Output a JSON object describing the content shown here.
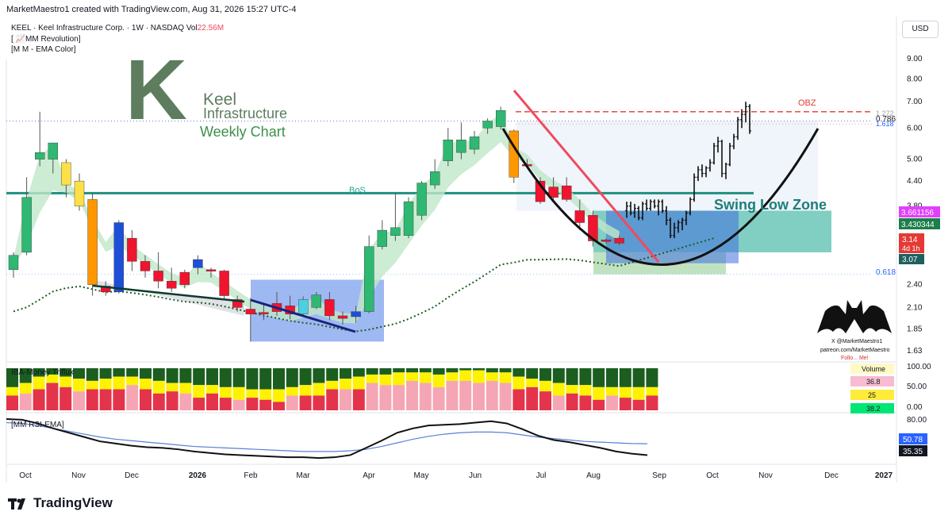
{
  "header": {
    "credit": "MarketMaestro1 created with TradingView.com, Aug 31, 2026 15:27 UTC-4",
    "symbol_line": "KEEL · Keel Infrastructure Corp. · 1W · NASDAQ",
    "vol_label": "Vol",
    "vol_value": "22.56M",
    "indicator_1": "[ 📈MM Revolution]",
    "indicator_2": "[M M - EMA Color]",
    "currency_button": "USD"
  },
  "logo": {
    "letter": "K",
    "line1": "Keel",
    "line2": "Infrastructure",
    "subtitle": "Weekly Chart"
  },
  "annotations": {
    "bos": "BoS",
    "obz": "OBZ",
    "swing_low_zone": "Swing Low Zone",
    "fib_1272": "1.272",
    "fib_0786": "0.786",
    "fib_1618": "1.618",
    "fib_0618": "0.618"
  },
  "badges": {
    "price_1": "3.661156",
    "price_2": "3.430344",
    "price_3": "3.14",
    "countdown": "4d 1h",
    "price_4": "3.07"
  },
  "watermark": {
    "line1": "X @MarketMaestro1",
    "line2": "patreon.com/MarketMaestro",
    "line3": "Follo... Me!"
  },
  "chart_data": {
    "type": "candlestick",
    "price_axis_ticks": [
      "9.00",
      "8.00",
      "7.00",
      "6.00",
      "5.00",
      "4.40",
      "3.80",
      "2.40",
      "2.10",
      "1.85",
      "1.63"
    ],
    "time_axis_ticks": [
      "Oct",
      "Nov",
      "Dec",
      "2026",
      "Feb",
      "Mar",
      "Apr",
      "May",
      "Jun",
      "Jul",
      "Aug",
      "Sep",
      "Oct",
      "Nov",
      "Dec",
      "2027"
    ],
    "weekly_candles": [
      {
        "o": 2.62,
        "h": 2.9,
        "l": 2.5,
        "c": 2.85,
        "col": "green"
      },
      {
        "o": 2.9,
        "h": 4.5,
        "l": 2.85,
        "c": 4.0,
        "col": "green"
      },
      {
        "o": 5.0,
        "h": 6.6,
        "l": 4.8,
        "c": 5.2,
        "col": "green"
      },
      {
        "o": 5.0,
        "h": 5.5,
        "l": 4.6,
        "c": 5.5,
        "col": "green"
      },
      {
        "o": 4.9,
        "h": 5.0,
        "l": 4.0,
        "c": 4.3,
        "col": "yellow"
      },
      {
        "o": 4.4,
        "h": 4.6,
        "l": 3.7,
        "c": 3.8,
        "col": "yellow"
      },
      {
        "o": 3.95,
        "h": 4.1,
        "l": 2.25,
        "c": 2.4,
        "col": "orange"
      },
      {
        "o": 2.38,
        "h": 2.45,
        "l": 2.25,
        "c": 2.3,
        "col": "red"
      },
      {
        "o": 2.3,
        "h": 3.5,
        "l": 2.28,
        "c": 3.45,
        "col": "blue"
      },
      {
        "o": 3.15,
        "h": 3.3,
        "l": 2.6,
        "c": 2.75,
        "col": "red"
      },
      {
        "o": 2.75,
        "h": 2.85,
        "l": 2.5,
        "c": 2.6,
        "col": "red"
      },
      {
        "o": 2.6,
        "h": 2.9,
        "l": 2.35,
        "c": 2.45,
        "col": "red"
      },
      {
        "o": 2.45,
        "h": 2.65,
        "l": 2.3,
        "c": 2.35,
        "col": "red"
      },
      {
        "o": 2.58,
        "h": 2.62,
        "l": 2.35,
        "c": 2.4,
        "col": "red"
      },
      {
        "o": 2.65,
        "h": 2.85,
        "l": 2.55,
        "c": 2.78,
        "col": "blue"
      },
      {
        "o": 2.62,
        "h": 2.65,
        "l": 2.5,
        "c": 2.6,
        "col": "red"
      },
      {
        "o": 2.6,
        "h": 2.62,
        "l": 2.2,
        "c": 2.25,
        "col": "red"
      },
      {
        "o": 2.2,
        "h": 2.25,
        "l": 2.05,
        "c": 2.1,
        "col": "red"
      },
      {
        "o": 2.08,
        "h": 2.22,
        "l": 1.72,
        "c": 2.02,
        "col": "red"
      },
      {
        "o": 2.04,
        "h": 2.14,
        "l": 1.95,
        "c": 2.02,
        "col": "red"
      },
      {
        "o": 2.15,
        "h": 2.3,
        "l": 2.0,
        "c": 2.05,
        "col": "red"
      },
      {
        "o": 2.12,
        "h": 2.25,
        "l": 1.96,
        "c": 2.02,
        "col": "red"
      },
      {
        "o": 2.02,
        "h": 2.24,
        "l": 2.0,
        "c": 2.2,
        "col": "cyan"
      },
      {
        "o": 2.1,
        "h": 2.3,
        "l": 2.08,
        "c": 2.26,
        "col": "green"
      },
      {
        "o": 2.2,
        "h": 2.3,
        "l": 1.95,
        "c": 2.0,
        "col": "red"
      },
      {
        "o": 2.0,
        "h": 2.05,
        "l": 1.9,
        "c": 1.97,
        "col": "red"
      },
      {
        "o": 1.99,
        "h": 2.12,
        "l": 1.92,
        "c": 2.05,
        "col": "blue"
      },
      {
        "o": 2.05,
        "h": 3.2,
        "l": 2.03,
        "c": 3.0,
        "col": "green"
      },
      {
        "o": 3.0,
        "h": 3.5,
        "l": 2.95,
        "c": 3.3,
        "col": "green"
      },
      {
        "o": 3.2,
        "h": 4.1,
        "l": 3.1,
        "c": 3.35,
        "col": "green"
      },
      {
        "o": 3.2,
        "h": 4.0,
        "l": 3.15,
        "c": 3.9,
        "col": "green"
      },
      {
        "o": 3.6,
        "h": 4.4,
        "l": 3.5,
        "c": 4.35,
        "col": "green"
      },
      {
        "o": 4.3,
        "h": 5.0,
        "l": 4.2,
        "c": 4.65,
        "col": "green"
      },
      {
        "o": 4.95,
        "h": 6.0,
        "l": 4.8,
        "c": 5.6,
        "col": "green"
      },
      {
        "o": 5.2,
        "h": 6.2,
        "l": 5.0,
        "c": 5.6,
        "col": "green"
      },
      {
        "o": 5.3,
        "h": 5.9,
        "l": 5.15,
        "c": 5.7,
        "col": "green"
      },
      {
        "o": 6.0,
        "h": 6.35,
        "l": 5.8,
        "c": 6.25,
        "col": "green"
      },
      {
        "o": 6.05,
        "h": 6.8,
        "l": 5.95,
        "c": 6.65,
        "col": "green"
      },
      {
        "o": 5.9,
        "h": 5.95,
        "l": 4.35,
        "c": 4.5,
        "col": "orange"
      },
      {
        "o": 4.85,
        "h": 5.0,
        "l": 4.75,
        "c": 4.82,
        "col": "red"
      },
      {
        "o": 4.4,
        "h": 4.5,
        "l": 3.85,
        "c": 3.9,
        "col": "red"
      },
      {
        "o": 4.25,
        "h": 4.5,
        "l": 3.95,
        "c": 4.0,
        "col": "red"
      },
      {
        "o": 4.28,
        "h": 4.5,
        "l": 3.9,
        "c": 3.95,
        "col": "red"
      },
      {
        "o": 3.7,
        "h": 3.95,
        "l": 3.3,
        "c": 3.45,
        "col": "red"
      },
      {
        "o": 3.6,
        "h": 3.7,
        "l": 3.0,
        "c": 3.1,
        "col": "red"
      },
      {
        "o": 3.12,
        "h": 3.15,
        "l": 3.05,
        "c": 3.1,
        "col": "red"
      },
      {
        "o": 3.15,
        "h": 3.2,
        "l": 3.02,
        "c": 3.06,
        "col": "red"
      }
    ],
    "daily_bars_recent": [
      {
        "o": 3.7,
        "h": 3.9,
        "l": 3.55,
        "c": 3.8
      },
      {
        "o": 3.8,
        "h": 3.9,
        "l": 3.6,
        "c": 3.65
      },
      {
        "o": 3.65,
        "h": 3.85,
        "l": 3.55,
        "c": 3.75
      },
      {
        "o": 3.75,
        "h": 3.8,
        "l": 3.5,
        "c": 3.55
      },
      {
        "o": 3.55,
        "h": 3.9,
        "l": 3.5,
        "c": 3.85
      },
      {
        "o": 3.85,
        "h": 3.95,
        "l": 3.7,
        "c": 3.75
      },
      {
        "o": 3.75,
        "h": 3.95,
        "l": 3.7,
        "c": 3.9
      },
      {
        "o": 3.9,
        "h": 3.95,
        "l": 3.75,
        "c": 3.8
      },
      {
        "o": 3.8,
        "h": 3.95,
        "l": 3.6,
        "c": 3.9
      },
      {
        "o": 3.9,
        "h": 3.95,
        "l": 3.65,
        "c": 3.7
      },
      {
        "o": 3.7,
        "h": 3.8,
        "l": 3.4,
        "c": 3.5
      },
      {
        "o": 3.5,
        "h": 3.55,
        "l": 3.15,
        "c": 3.2
      },
      {
        "o": 3.2,
        "h": 3.45,
        "l": 3.15,
        "c": 3.35
      },
      {
        "o": 3.35,
        "h": 3.5,
        "l": 3.25,
        "c": 3.45
      },
      {
        "o": 3.45,
        "h": 3.55,
        "l": 3.3,
        "c": 3.5
      },
      {
        "o": 3.5,
        "h": 3.7,
        "l": 3.4,
        "c": 3.65
      },
      {
        "o": 3.65,
        "h": 4.0,
        "l": 3.6,
        "c": 3.95
      },
      {
        "o": 3.95,
        "h": 4.6,
        "l": 3.9,
        "c": 4.5
      },
      {
        "o": 4.5,
        "h": 4.8,
        "l": 4.4,
        "c": 4.7
      },
      {
        "o": 4.7,
        "h": 4.85,
        "l": 4.5,
        "c": 4.6
      },
      {
        "o": 4.6,
        "h": 4.8,
        "l": 4.5,
        "c": 4.75
      },
      {
        "o": 4.75,
        "h": 5.0,
        "l": 4.65,
        "c": 4.9
      },
      {
        "o": 4.9,
        "h": 5.5,
        "l": 4.85,
        "c": 5.4
      },
      {
        "o": 5.4,
        "h": 5.7,
        "l": 5.2,
        "c": 5.55
      },
      {
        "o": 5.55,
        "h": 5.6,
        "l": 4.5,
        "c": 4.6
      },
      {
        "o": 4.6,
        "h": 4.9,
        "l": 4.45,
        "c": 4.85
      },
      {
        "o": 4.85,
        "h": 5.5,
        "l": 4.8,
        "c": 5.4
      },
      {
        "o": 5.4,
        "h": 5.8,
        "l": 5.3,
        "c": 5.7
      },
      {
        "o": 5.7,
        "h": 6.4,
        "l": 5.6,
        "c": 6.3
      },
      {
        "o": 6.3,
        "h": 6.7,
        "l": 6.0,
        "c": 6.5
      },
      {
        "o": 6.5,
        "h": 7.0,
        "l": 6.2,
        "c": 6.8
      },
      {
        "o": 6.8,
        "h": 6.9,
        "l": 5.8,
        "c": 5.9
      }
    ],
    "fib_levels": {
      "1.272": 6.6,
      "0.786": 6.35,
      "1.618": 6.25,
      "0.618": 2.55
    },
    "bos_level": 4.1,
    "price_scale": "log",
    "volume_panel": {
      "title": "IBA-Money Triflux",
      "y_ticks": [
        "100.00",
        "50.00",
        "0.00"
      ],
      "legend": {
        "label": "Volume",
        "values": [
          "36.8",
          "25",
          "38.2"
        ]
      }
    },
    "rsi_panel": {
      "title": "[MM RSI-EMA]",
      "y_ticks": [
        "80.00"
      ],
      "values": [
        85,
        84,
        79,
        72,
        66,
        60,
        54,
        51,
        48,
        46,
        45,
        43,
        40,
        38,
        36,
        35,
        34,
        33,
        32,
        32,
        31,
        32,
        35,
        45,
        55,
        66,
        72,
        76,
        77,
        78,
        80,
        82,
        79,
        71,
        62,
        56,
        53,
        49,
        45,
        40,
        37,
        35
      ],
      "ema_values": [
        80,
        79,
        76,
        72,
        68,
        64,
        60,
        57,
        55,
        53,
        51,
        49,
        47,
        46,
        45,
        44,
        43,
        42,
        41,
        40,
        40,
        40,
        41,
        43,
        47,
        52,
        57,
        61,
        64,
        66,
        67,
        67,
        66,
        63,
        60,
        58,
        56,
        54,
        53,
        52,
        51,
        50.78
      ],
      "badge_rsi_ema": "50.78",
      "badge_rsi": "35.35"
    }
  }
}
